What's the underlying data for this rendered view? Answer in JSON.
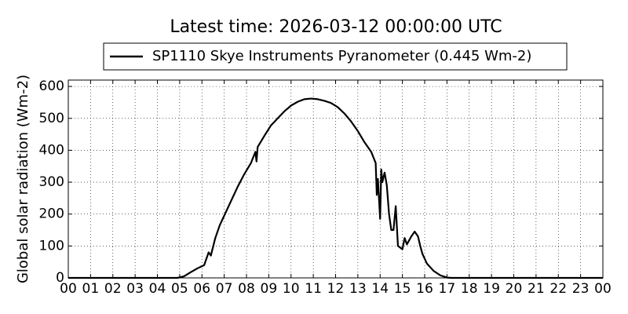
{
  "chart_data": {
    "type": "line",
    "title": "Latest time: 2026-03-12 00:00:00 UTC",
    "y_label": "Global solar radiation (Wm-2)",
    "x": [
      0,
      4.9,
      5.2,
      5.5,
      5.8,
      6.1,
      6.3,
      6.4,
      6.6,
      6.8,
      7.0,
      7.3,
      7.6,
      7.9,
      8.2,
      8.4,
      8.45,
      8.5,
      8.8,
      9.1,
      9.4,
      9.7,
      10.0,
      10.3,
      10.6,
      10.9,
      11.2,
      11.5,
      11.8,
      12.1,
      12.4,
      12.7,
      13.0,
      13.3,
      13.6,
      13.8,
      13.85,
      13.9,
      14.0,
      14.05,
      14.1,
      14.2,
      14.3,
      14.4,
      14.5,
      14.6,
      14.7,
      14.8,
      15.0,
      15.1,
      15.2,
      15.4,
      15.55,
      15.7,
      15.8,
      15.9,
      16.1,
      16.4,
      16.7,
      17.0,
      17.2,
      24
    ],
    "series": [
      {
        "name": "SP1110 Skye Instruments Pyranometer (0.445 Wm-2)",
        "color": "#000000",
        "values": [
          0,
          0,
          5,
          18,
          30,
          40,
          80,
          70,
          125,
          165,
          195,
          240,
          285,
          325,
          360,
          395,
          365,
          410,
          445,
          478,
          500,
          522,
          540,
          552,
          560,
          562,
          560,
          555,
          548,
          535,
          515,
          490,
          460,
          425,
          395,
          360,
          260,
          310,
          185,
          340,
          300,
          330,
          290,
          200,
          150,
          150,
          225,
          100,
          90,
          125,
          105,
          130,
          145,
          130,
          100,
          75,
          45,
          22,
          8,
          1,
          0,
          0
        ]
      }
    ],
    "xlim": [
      0,
      24
    ],
    "xticks": [
      {
        "value": 0,
        "label": "00"
      },
      {
        "value": 1,
        "label": "01"
      },
      {
        "value": 2,
        "label": "02"
      },
      {
        "value": 3,
        "label": "03"
      },
      {
        "value": 4,
        "label": "04"
      },
      {
        "value": 5,
        "label": "05"
      },
      {
        "value": 6,
        "label": "06"
      },
      {
        "value": 7,
        "label": "07"
      },
      {
        "value": 8,
        "label": "08"
      },
      {
        "value": 9,
        "label": "09"
      },
      {
        "value": 10,
        "label": "10"
      },
      {
        "value": 11,
        "label": "11"
      },
      {
        "value": 12,
        "label": "12"
      },
      {
        "value": 13,
        "label": "13"
      },
      {
        "value": 14,
        "label": "14"
      },
      {
        "value": 15,
        "label": "15"
      },
      {
        "value": 16,
        "label": "16"
      },
      {
        "value": 17,
        "label": "17"
      },
      {
        "value": 18,
        "label": "18"
      },
      {
        "value": 19,
        "label": "19"
      },
      {
        "value": 20,
        "label": "20"
      },
      {
        "value": 21,
        "label": "21"
      },
      {
        "value": 22,
        "label": "22"
      },
      {
        "value": 23,
        "label": "23"
      },
      {
        "value": 24,
        "label": "00"
      }
    ],
    "ylim": [
      0,
      620
    ],
    "yticks": [
      0,
      100,
      200,
      300,
      400,
      500,
      600
    ],
    "grid": true,
    "legend": "top"
  }
}
